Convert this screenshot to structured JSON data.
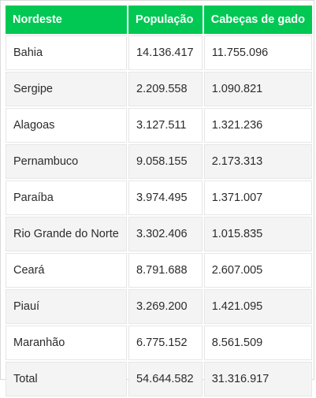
{
  "colors": {
    "accent": "#00c853",
    "header_text": "#ffffff",
    "row_alt": "#f4f4f4"
  },
  "table": {
    "headers": [
      "Nordeste",
      "População",
      "Cabeças de gado"
    ],
    "rows": [
      [
        "Bahia",
        "14.136.417",
        "11.755.096"
      ],
      [
        "Sergipe",
        "2.209.558",
        "1.090.821"
      ],
      [
        "Alagoas",
        "3.127.511",
        "1.321.236"
      ],
      [
        "Pernambuco",
        "9.058.155",
        "2.173.313"
      ],
      [
        "Paraíba",
        "3.974.495",
        "1.371.007"
      ],
      [
        "Rio Grande do Norte",
        "3.302.406",
        "1.015.835"
      ],
      [
        "Ceará",
        "8.791.688",
        "2.607.005"
      ],
      [
        "Piauí",
        "3.269.200",
        "1.421.095"
      ],
      [
        "Maranhão",
        "6.775.152",
        "8.561.509"
      ],
      [
        "Total",
        "54.644.582",
        "31.316.917"
      ]
    ]
  }
}
